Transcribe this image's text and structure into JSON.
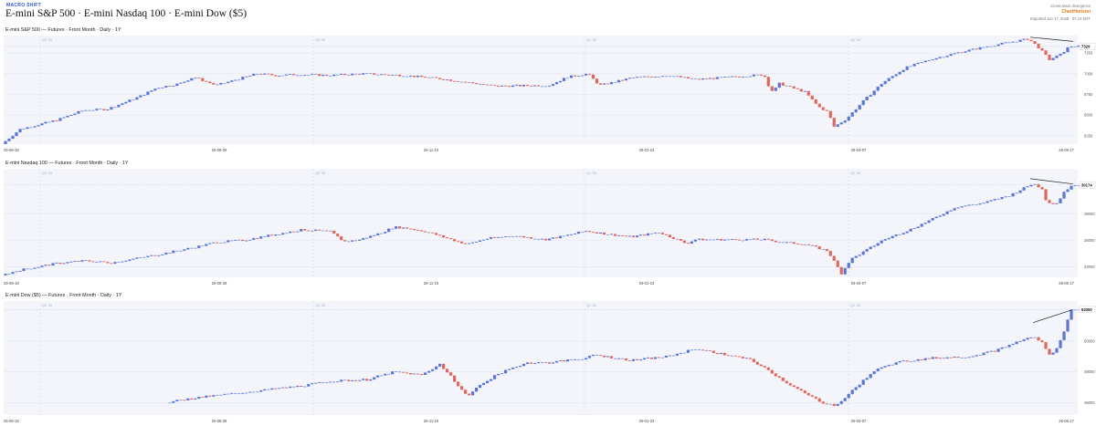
{
  "header": {
    "brand": "MACRO SHIFT",
    "title": "E-mini S&P 500 · E-mini Nasdaq 100 · E-mini Dow ($5)",
    "meta_line1": "Cross-asset divergence",
    "logo": "ChartHorizon",
    "exported": "Exported Jun 17, 2026 · 07:14 EDT"
  },
  "colors": {
    "up": "#5b74d6",
    "down": "#e0675b",
    "flat": "#7f93e0",
    "bg": "#f3f5fa"
  },
  "chart_data": [
    {
      "type": "candlestick",
      "id": "es",
      "label": "E-mini S&P 500  —  Futures · Front Month · Daily · 1Y",
      "x_ticks": [
        "25-06-18",
        "25-08-29",
        "25-11-10",
        "26-01-23",
        "26-04-07",
        "26-06-17"
      ],
      "vline_labels": [
        "Q2 '25",
        "Q3 '25",
        "Q1 '26",
        "Q2 '26"
      ],
      "y_ticks": [
        6250,
        6500,
        6750,
        7000,
        7250
      ],
      "y_range": [
        6150,
        7460
      ],
      "last_value": "7329",
      "anchors": [
        [
          0,
          6150
        ],
        [
          20,
          6330
        ],
        [
          60,
          6440
        ],
        [
          90,
          6560
        ],
        [
          115,
          6570
        ],
        [
          150,
          6720
        ],
        [
          170,
          6830
        ],
        [
          195,
          6880
        ],
        [
          210,
          6960
        ],
        [
          235,
          6860
        ],
        [
          280,
          7000
        ],
        [
          300,
          6980
        ],
        [
          325,
          6990
        ],
        [
          360,
          6980
        ],
        [
          395,
          7000
        ],
        [
          440,
          6980
        ],
        [
          480,
          6940
        ],
        [
          540,
          6850
        ],
        [
          600,
          6860
        ],
        [
          620,
          6960
        ],
        [
          642,
          7000
        ],
        [
          655,
          6860
        ],
        [
          660,
          6870
        ],
        [
          690,
          6950
        ],
        [
          730,
          6980
        ],
        [
          760,
          6930
        ],
        [
          800,
          6960
        ],
        [
          835,
          6990
        ],
        [
          840,
          6860
        ],
        [
          845,
          6780
        ],
        [
          852,
          6880
        ],
        [
          880,
          6780
        ],
        [
          895,
          6600
        ],
        [
          905,
          6540
        ],
        [
          912,
          6360
        ],
        [
          925,
          6450
        ],
        [
          945,
          6680
        ],
        [
          965,
          6890
        ],
        [
          990,
          7070
        ],
        [
          1020,
          7180
        ],
        [
          1050,
          7260
        ],
        [
          1080,
          7330
        ],
        [
          1105,
          7380
        ],
        [
          1125,
          7420
        ],
        [
          1135,
          7330
        ],
        [
          1148,
          7170
        ],
        [
          1160,
          7230
        ],
        [
          1170,
          7330
        ],
        [
          1177,
          7329
        ]
      ],
      "trendline": [
        [
          1125,
          7440
        ],
        [
          1172,
          7390
        ]
      ]
    },
    {
      "type": "candlestick",
      "id": "nq",
      "label": "E-mini Nasdaq 100  —  Futures · Front Month · Daily · 1Y",
      "x_ticks": [
        "25-06-18",
        "25-08-29",
        "25-11-10",
        "26-01-23",
        "26-04-07",
        "26-06-17"
      ],
      "vline_labels": [
        "Q2 '25",
        "Q3 '25",
        "Q1 '26",
        "Q2 '26"
      ],
      "y_ticks": [
        24000,
        26000,
        28000
      ],
      "y_range": [
        23200,
        31400
      ],
      "last_value": "30174",
      "anchors": [
        [
          0,
          23350
        ],
        [
          20,
          23750
        ],
        [
          60,
          24250
        ],
        [
          90,
          24450
        ],
        [
          120,
          24300
        ],
        [
          170,
          24900
        ],
        [
          210,
          25450
        ],
        [
          235,
          25850
        ],
        [
          265,
          26000
        ],
        [
          300,
          26450
        ],
        [
          330,
          26800
        ],
        [
          360,
          26650
        ],
        [
          375,
          25900
        ],
        [
          390,
          26000
        ],
        [
          415,
          26550
        ],
        [
          430,
          27000
        ],
        [
          445,
          26900
        ],
        [
          465,
          26650
        ],
        [
          495,
          26000
        ],
        [
          510,
          25700
        ],
        [
          530,
          26100
        ],
        [
          560,
          26350
        ],
        [
          595,
          26050
        ],
        [
          615,
          26300
        ],
        [
          640,
          26700
        ],
        [
          660,
          26500
        ],
        [
          690,
          26250
        ],
        [
          720,
          26600
        ],
        [
          735,
          26200
        ],
        [
          750,
          25750
        ],
        [
          760,
          26050
        ],
        [
          800,
          26050
        ],
        [
          835,
          26050
        ],
        [
          855,
          25850
        ],
        [
          880,
          25700
        ],
        [
          905,
          25200
        ],
        [
          920,
          23500
        ],
        [
          930,
          24550
        ],
        [
          945,
          25150
        ],
        [
          965,
          26000
        ],
        [
          995,
          26800
        ],
        [
          1020,
          27600
        ],
        [
          1045,
          28500
        ],
        [
          1075,
          28800
        ],
        [
          1105,
          29400
        ],
        [
          1130,
          30300
        ],
        [
          1140,
          29900
        ],
        [
          1145,
          28900
        ],
        [
          1155,
          28700
        ],
        [
          1165,
          29700
        ],
        [
          1172,
          30174
        ]
      ],
      "trendline": [
        [
          1125,
          30650
        ],
        [
          1172,
          30250
        ]
      ]
    },
    {
      "type": "candlestick",
      "id": "ym",
      "label": "E-mini Dow ($5)  —  Futures · Front Month · Daily · 1Y",
      "x_ticks": [
        "25-06-18",
        "25-08-29",
        "25-11-10",
        "26-01-23",
        "26-04-07",
        "26-06-17"
      ],
      "vline_labels": [
        "Q2 '25",
        "Q3 '25",
        "Q1 '26",
        "Q2 '26"
      ],
      "y_ticks": [
        46000,
        48000,
        50000
      ],
      "y_range": [
        45200,
        52600
      ],
      "last_value": "52050",
      "data_start": 180,
      "anchors": [
        [
          180,
          46000
        ],
        [
          210,
          46300
        ],
        [
          270,
          46700
        ],
        [
          330,
          47100
        ],
        [
          360,
          47400
        ],
        [
          400,
          47500
        ],
        [
          430,
          48000
        ],
        [
          460,
          47800
        ],
        [
          480,
          48500
        ],
        [
          495,
          47500
        ],
        [
          510,
          46400
        ],
        [
          525,
          47200
        ],
        [
          545,
          47900
        ],
        [
          575,
          48600
        ],
        [
          600,
          48600
        ],
        [
          625,
          48800
        ],
        [
          640,
          48900
        ],
        [
          650,
          49100
        ],
        [
          690,
          48750
        ],
        [
          730,
          49000
        ],
        [
          760,
          49500
        ],
        [
          770,
          49400
        ],
        [
          790,
          49150
        ],
        [
          820,
          48800
        ],
        [
          840,
          48100
        ],
        [
          860,
          47300
        ],
        [
          880,
          46600
        ],
        [
          900,
          46000
        ],
        [
          915,
          45800
        ],
        [
          925,
          46400
        ],
        [
          945,
          47500
        ],
        [
          965,
          48400
        ],
        [
          990,
          48700
        ],
        [
          1020,
          48900
        ],
        [
          1060,
          49000
        ],
        [
          1090,
          49400
        ],
        [
          1115,
          50000
        ],
        [
          1130,
          50300
        ],
        [
          1140,
          49900
        ],
        [
          1150,
          49000
        ],
        [
          1160,
          50000
        ],
        [
          1172,
          52050
        ]
      ],
      "trendline": [
        [
          1128,
          51200
        ],
        [
          1172,
          52050
        ]
      ]
    }
  ]
}
